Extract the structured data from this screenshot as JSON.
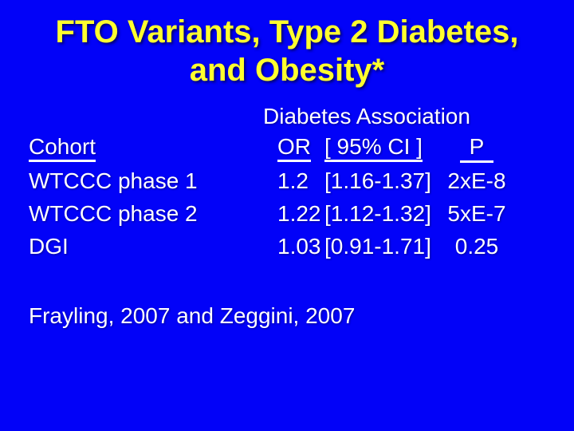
{
  "slide": {
    "title_line1": "FTO Variants, Type 2 Diabetes,",
    "title_line2": "and Obesity*",
    "section_header": "Diabetes Association",
    "table": {
      "col_cohort": "Cohort",
      "col_or": "OR",
      "col_ci": "[ 95% CI ]",
      "col_p": "P",
      "rows": [
        {
          "cohort": "WTCCC phase 1",
          "or": "1.2",
          "ci": "[1.16-1.37]",
          "p": "2xE-8"
        },
        {
          "cohort": "WTCCC phase 2",
          "or": "1.22",
          "ci": "[1.12-1.32]",
          "p": "5xE-7"
        },
        {
          "cohort": "DGI",
          "or": "1.03",
          "ci": "[0.91-1.71]",
          "p": "0.25"
        }
      ]
    },
    "citation": "Frayling, 2007 and Zeggini, 2007",
    "colors": {
      "background": "#0202f8",
      "title_text": "#ffff2e",
      "body_text": "#ffffff"
    }
  }
}
